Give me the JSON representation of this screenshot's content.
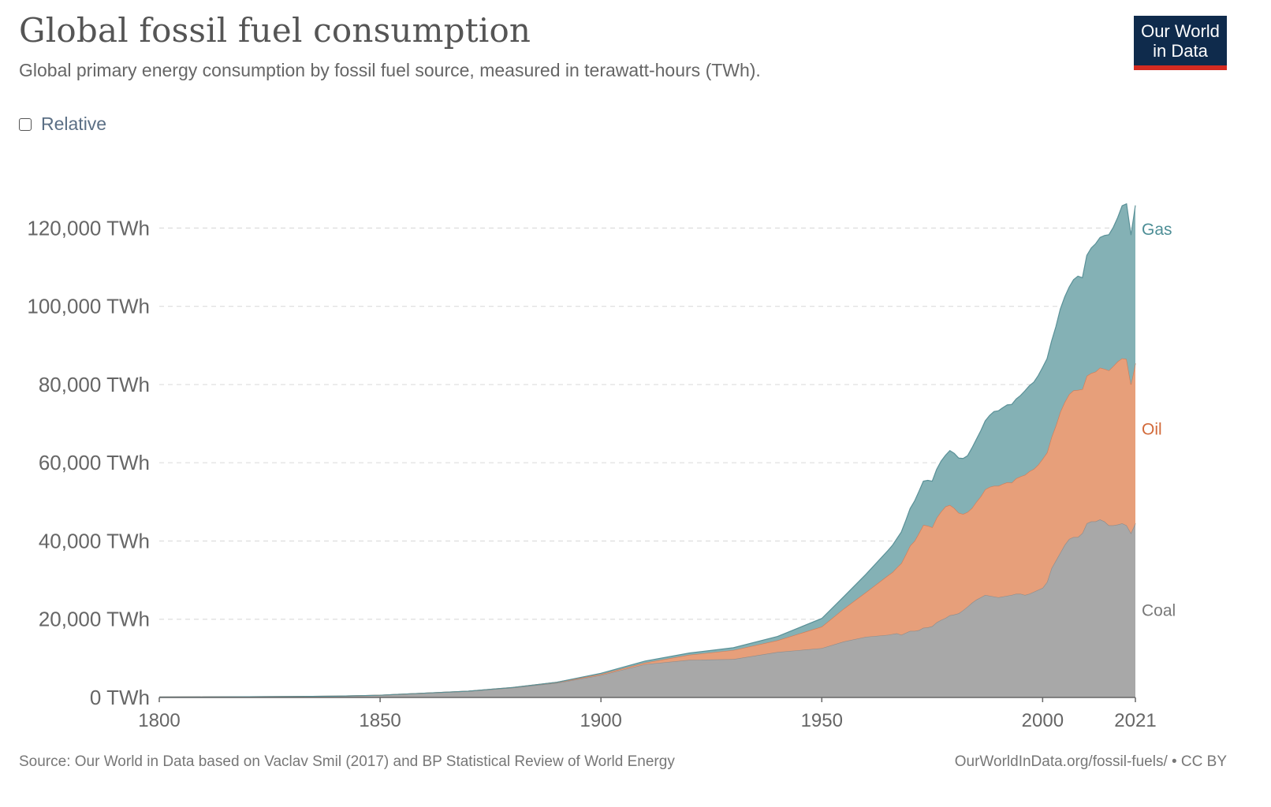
{
  "header": {
    "title": "Global fossil fuel consumption",
    "subtitle": "Global primary energy consumption by fossil fuel source, measured in terawatt-hours (TWh).",
    "logo_line1": "Our World",
    "logo_line2": "in Data"
  },
  "controls": {
    "relative_label": "Relative",
    "relative_checked": false
  },
  "footer": {
    "source": "Source: Our World in Data based on Vaclav Smil (2017) and BP Statistical Review of World Energy",
    "link": "OurWorldInData.org/fossil-fuels/ • CC BY"
  },
  "colors": {
    "coal_fill": "#a8a8a8",
    "coal_line": "#8c8c8c",
    "coal_text": "#787878",
    "oil_fill": "#e79f7a",
    "oil_line": "#d27a55",
    "oil_text": "#d26a3a",
    "gas_fill": "#84b1b5",
    "gas_line": "#5a9198",
    "gas_text": "#4d8e96",
    "grid": "#dddddd",
    "axis": "#666666"
  },
  "chart_data": {
    "type": "area",
    "stacked": true,
    "x_unit": "year",
    "ylim": [
      0,
      136000
    ],
    "xlim": [
      1800,
      2021
    ],
    "y_ticks": [
      {
        "value": 0,
        "label": "0 TWh"
      },
      {
        "value": 20000,
        "label": "20,000 TWh"
      },
      {
        "value": 40000,
        "label": "40,000 TWh"
      },
      {
        "value": 60000,
        "label": "60,000 TWh"
      },
      {
        "value": 80000,
        "label": "80,000 TWh"
      },
      {
        "value": 100000,
        "label": "100,000 TWh"
      },
      {
        "value": 120000,
        "label": "120,000 TWh"
      }
    ],
    "x_ticks": [
      {
        "value": 1800,
        "label": "1800"
      },
      {
        "value": 1850,
        "label": "1850"
      },
      {
        "value": 1900,
        "label": "1900"
      },
      {
        "value": 1950,
        "label": "1950"
      },
      {
        "value": 2000,
        "label": "2000"
      },
      {
        "value": 2021,
        "label": "2021"
      }
    ],
    "grid": "horizontal dashed",
    "x": [
      1800,
      1810,
      1820,
      1830,
      1840,
      1850,
      1860,
      1870,
      1880,
      1890,
      1900,
      1910,
      1920,
      1930,
      1940,
      1950,
      1955,
      1960,
      1965,
      1966,
      1967,
      1968,
      1969,
      1970,
      1971,
      1972,
      1973,
      1974,
      1975,
      1976,
      1977,
      1978,
      1979,
      1980,
      1981,
      1982,
      1983,
      1984,
      1985,
      1986,
      1987,
      1988,
      1989,
      1990,
      1991,
      1992,
      1993,
      1994,
      1995,
      1996,
      1997,
      1998,
      1999,
      2000,
      2001,
      2002,
      2003,
      2004,
      2005,
      2006,
      2007,
      2008,
      2009,
      2010,
      2011,
      2012,
      2013,
      2014,
      2015,
      2016,
      2017,
      2018,
      2019,
      2020,
      2021
    ],
    "series": [
      {
        "name": "Coal",
        "values": [
          97,
          120,
          170,
          230,
          320,
          570,
          1100,
          1600,
          2500,
          3700,
          5700,
          8500,
          9600,
          9800,
          11600,
          12600,
          14300,
          15500,
          16000,
          16200,
          16400,
          16000,
          16500,
          17000,
          17000,
          17200,
          17800,
          17900,
          18200,
          19200,
          19800,
          20300,
          21000,
          21200,
          21500,
          22300,
          23200,
          24200,
          25000,
          25600,
          26200,
          26000,
          25800,
          25600,
          25800,
          26000,
          26200,
          26500,
          26500,
          26200,
          26500,
          27000,
          27500,
          28000,
          29500,
          33000,
          35000,
          37000,
          39000,
          40500,
          41000,
          41000,
          42000,
          44500,
          45000,
          45000,
          45500,
          45000,
          44000,
          44000,
          44200,
          44500,
          44000,
          42000,
          44500
        ]
      },
      {
        "name": "Oil",
        "values": [
          0,
          0,
          0,
          0,
          0,
          0,
          0,
          5,
          50,
          180,
          240,
          380,
          1300,
          2300,
          3000,
          5500,
          8400,
          11400,
          15200,
          15800,
          16800,
          18300,
          20000,
          21800,
          23000,
          24800,
          26300,
          26000,
          25300,
          26700,
          27700,
          28500,
          28200,
          27200,
          25700,
          24600,
          24200,
          24200,
          25000,
          25800,
          27000,
          27800,
          28300,
          28500,
          28800,
          29000,
          28700,
          29500,
          30000,
          30700,
          31300,
          31400,
          32000,
          33000,
          33100,
          33500,
          34500,
          36000,
          36500,
          37000,
          37500,
          37600,
          36800,
          37700,
          37900,
          38300,
          38800,
          39000,
          39600,
          40700,
          41700,
          42200,
          42500,
          38000,
          40900
        ]
      },
      {
        "name": "Gas",
        "values": [
          0,
          0,
          0,
          0,
          0,
          0,
          0,
          0,
          0,
          0,
          240,
          420,
          460,
          620,
          1000,
          2100,
          3100,
          4600,
          6400,
          6900,
          7400,
          8000,
          8700,
          9500,
          10200,
          10700,
          11200,
          11600,
          11800,
          12400,
          12900,
          13100,
          13900,
          14000,
          14000,
          14200,
          14400,
          15400,
          16000,
          16800,
          17500,
          18300,
          19000,
          19200,
          19500,
          19800,
          20000,
          20300,
          20700,
          21500,
          21900,
          22200,
          22800,
          23400,
          24000,
          24500,
          25300,
          26300,
          26900,
          27400,
          28300,
          29100,
          28500,
          30800,
          32000,
          32700,
          33300,
          34100,
          34700,
          35500,
          36800,
          39000,
          39700,
          38200,
          40400
        ]
      }
    ],
    "series_labels": [
      "Gas",
      "Oil",
      "Coal"
    ]
  }
}
